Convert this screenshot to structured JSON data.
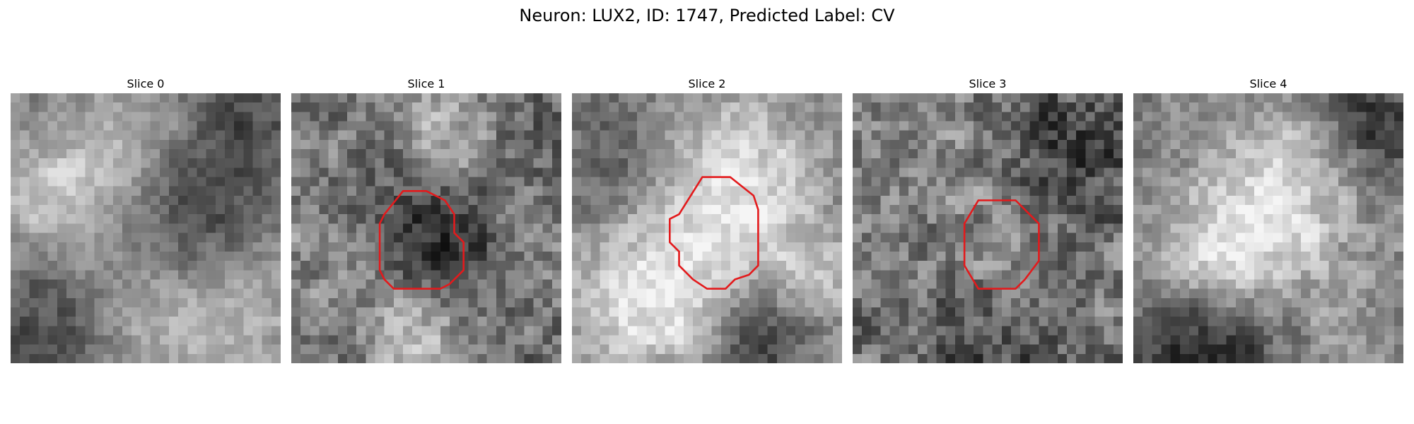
{
  "figure": {
    "title": "Neuron: LUX2, ID: 1747, Predicted Label: CV",
    "contour_color": "#e31a1c",
    "colormap": "gray",
    "panels": [
      {
        "title": "Slice 0",
        "has_contour": false
      },
      {
        "title": "Slice 1",
        "has_contour": true
      },
      {
        "title": "Slice 2",
        "has_contour": true
      },
      {
        "title": "Slice 3",
        "has_contour": true
      },
      {
        "title": "Slice 4",
        "has_contour": false
      }
    ]
  }
}
